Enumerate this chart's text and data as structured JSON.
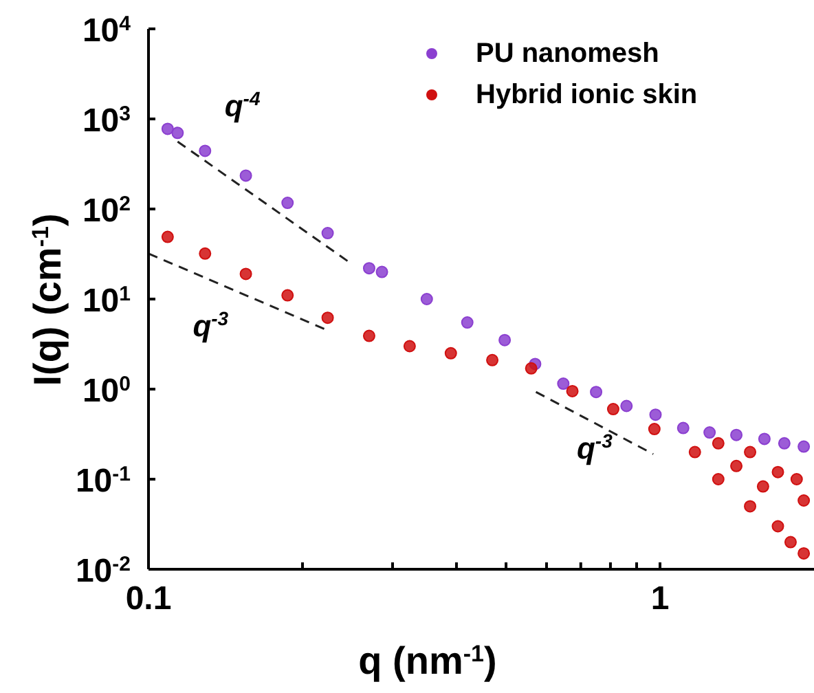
{
  "chart_data": {
    "type": "scatter",
    "xlabel": "q (nm$^{-1}$)",
    "ylabel": "I(q) (cm$^{-1}$)",
    "log": "xy",
    "marker": "circle",
    "legend": "top right",
    "xlim": [
      0.1,
      2
    ],
    "ylim": [
      0.01,
      10000
    ],
    "xticks": [
      0.1,
      {
        "value": 0.2,
        "label": null
      },
      {
        "value": 0.3,
        "label": null
      },
      {
        "value": 0.4,
        "label": null
      },
      {
        "value": 0.5,
        "label": null
      },
      {
        "value": 0.6,
        "label": null
      },
      {
        "value": 0.7,
        "label": null
      },
      {
        "value": 0.8,
        "label": null
      },
      {
        "value": 0.9,
        "label": null
      },
      1
    ],
    "yticks": [
      {
        "value": 0.01,
        "label": "10$^{-2}$"
      },
      {
        "value": 0.1,
        "label": "10$^{-1}$"
      },
      {
        "value": 1,
        "label": "10$^{0}$"
      },
      {
        "value": 10,
        "label": "10$^{1}$"
      },
      {
        "value": 100,
        "label": "10$^{2}$"
      },
      {
        "value": 1000,
        "label": "10$^{3}$"
      },
      {
        "value": 10000,
        "label": "10$^{4}$"
      }
    ],
    "annotations": [
      "q$^{-4}$",
      "q$^{-3}$",
      "q$^{-3}$"
    ],
    "series": [
      {
        "name": "PU nanomesh",
        "color": "#8b3fd0",
        "x": [
          0.109,
          0.114,
          0.129,
          0.155,
          0.187,
          0.224,
          0.27,
          0.286,
          0.35,
          0.42,
          0.497,
          0.57,
          0.647,
          0.75,
          0.86,
          0.98,
          1.11,
          1.25,
          1.41,
          1.6,
          1.75,
          1.91
        ],
        "values": [
          776,
          700,
          442,
          235,
          117,
          54,
          22,
          20,
          10,
          5.5,
          3.5,
          1.9,
          1.15,
          0.93,
          0.65,
          0.52,
          0.37,
          0.33,
          0.31,
          0.28,
          0.25,
          0.23
        ]
      },
      {
        "name": "Hybrid ionic skin",
        "color": "#d01010",
        "x": [
          0.109,
          0.129,
          0.155,
          0.187,
          0.224,
          0.27,
          0.324,
          0.39,
          0.47,
          0.56,
          0.674,
          0.81,
          0.975,
          1.17,
          1.3,
          1.3,
          1.41,
          1.5,
          1.5,
          1.59,
          1.7,
          1.7,
          1.8,
          1.85,
          1.91,
          1.91
        ],
        "values": [
          49,
          32,
          19,
          11,
          6.2,
          3.9,
          3.0,
          2.5,
          2.1,
          1.7,
          0.95,
          0.6,
          0.36,
          0.2,
          0.1,
          0.25,
          0.14,
          0.05,
          0.2,
          0.083,
          0.03,
          0.12,
          0.02,
          0.1,
          0.015,
          0.058
        ]
      },
      {
        "type": "line",
        "color": "#222222",
        "line_style": "dashed",
        "marker": "none",
        "x": [
          0.114,
          0.246
        ],
        "values": [
          560,
          26
        ]
      },
      {
        "type": "line",
        "color": "#222222",
        "line_style": "dashed",
        "marker": "none",
        "x": [
          0.1,
          0.224
        ],
        "values": [
          32,
          4.5
        ]
      },
      {
        "type": "line",
        "color": "#222222",
        "line_style": "dashed",
        "marker": "none",
        "x": [
          0.572,
          0.97
        ],
        "values": [
          0.93,
          0.19
        ]
      }
    ]
  }
}
